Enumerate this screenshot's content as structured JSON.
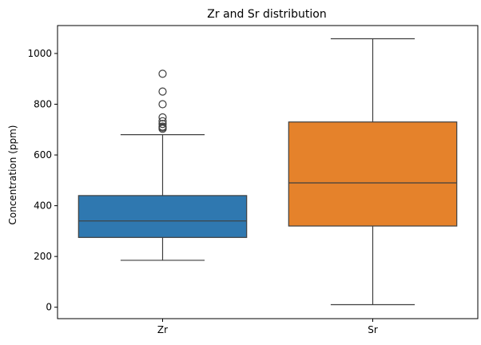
{
  "chart_data": {
    "type": "box",
    "title": "Zr and Sr distribution",
    "xlabel": "",
    "ylabel": "Concentration (ppm)",
    "ylim": [
      -45,
      1110
    ],
    "yticks": [
      0,
      200,
      400,
      600,
      800,
      1000
    ],
    "grid": false,
    "categories": [
      "Zr",
      "Sr"
    ],
    "series": [
      {
        "category": "Zr",
        "color": "#2f78b0",
        "whisker_low": 185,
        "q1": 275,
        "median": 340,
        "q3": 440,
        "whisker_high": 680,
        "outliers": [
          703,
          708,
          712,
          722,
          733,
          748,
          800,
          850,
          920
        ]
      },
      {
        "category": "Sr",
        "color": "#e5822b",
        "whisker_low": 10,
        "q1": 320,
        "median": 490,
        "q3": 730,
        "whisker_high": 1058,
        "outliers": []
      }
    ]
  }
}
